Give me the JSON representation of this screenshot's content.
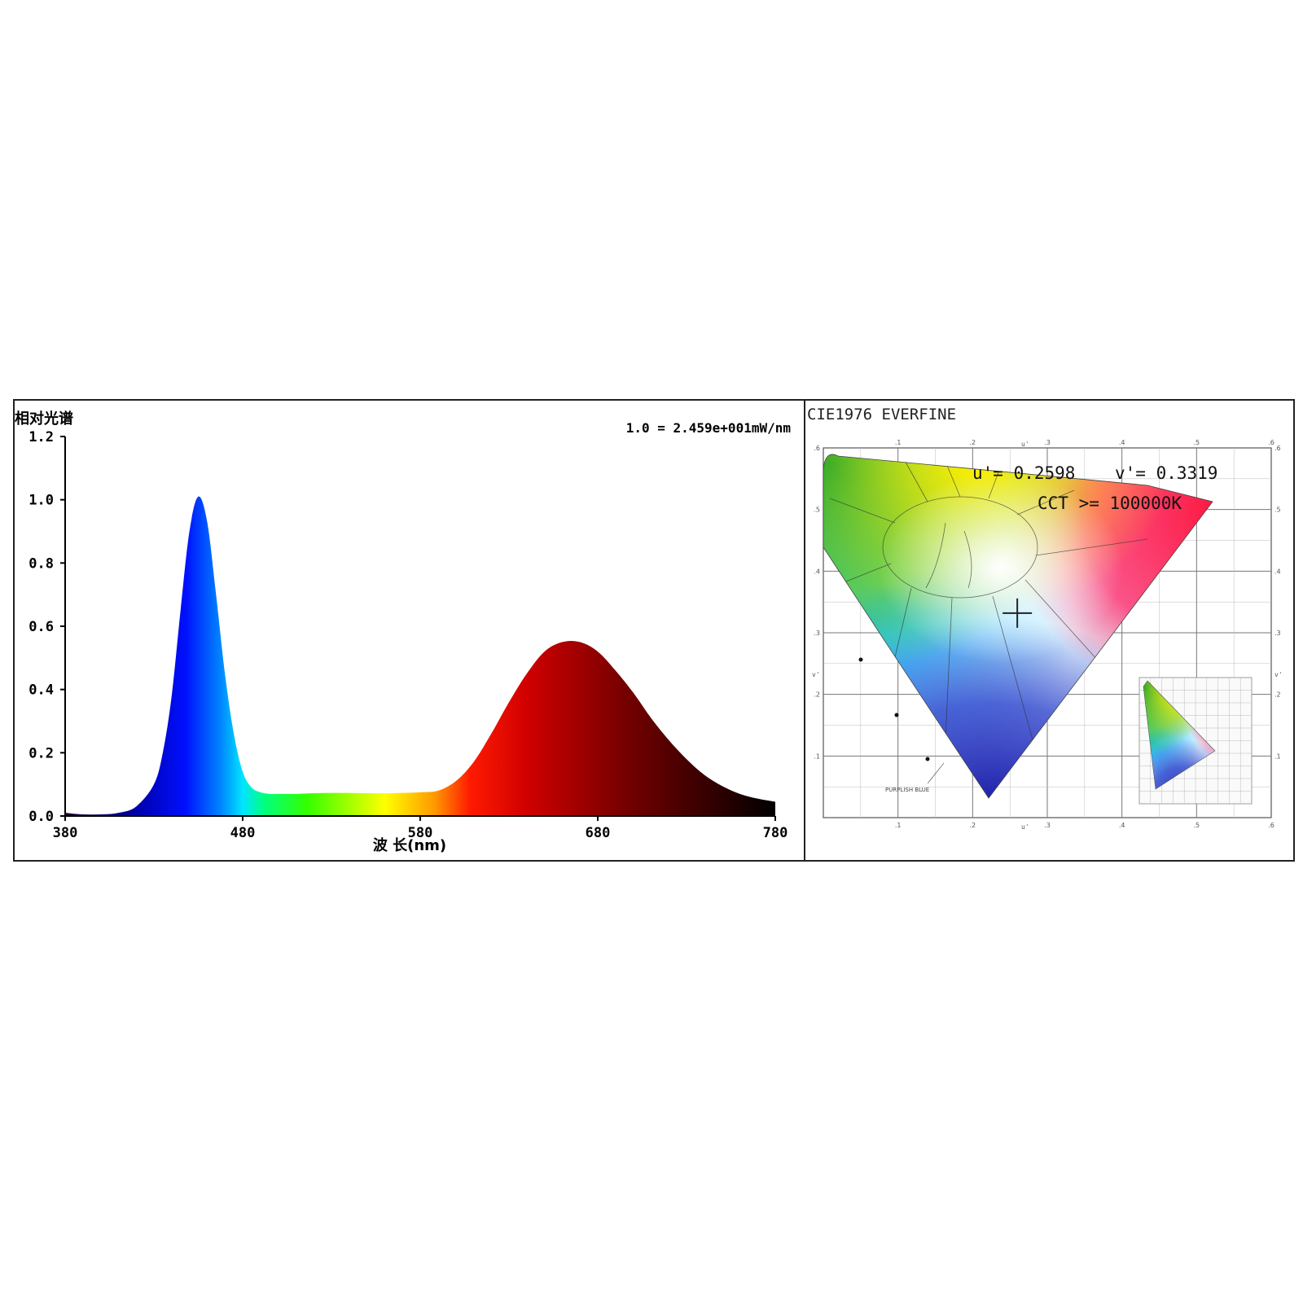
{
  "colors": {
    "frame": "#222222",
    "axis": "#000000",
    "plot_bg": "#ffffff"
  },
  "chart_data": [
    {
      "type": "area",
      "title": "1.0 = 2.459e+001mW/nm",
      "ylabel": "相对光谱",
      "xlabel": "波 长(nm)",
      "xlim": [
        380,
        780
      ],
      "ylim": [
        0,
        1.2
      ],
      "x_ticks": [
        "380",
        "480",
        "580",
        "680",
        "780"
      ],
      "y_ticks": [
        "0.0",
        "0.2",
        "0.4",
        "0.6",
        "0.8",
        "1.0",
        "1.2"
      ],
      "fill": "spectral color gradient by wavelength",
      "grid": false,
      "x": [
        380,
        390,
        400,
        410,
        420,
        430,
        435,
        440,
        445,
        450,
        455,
        460,
        465,
        470,
        475,
        480,
        485,
        490,
        495,
        500,
        510,
        520,
        530,
        540,
        550,
        560,
        570,
        580,
        590,
        600,
        610,
        620,
        630,
        640,
        650,
        660,
        670,
        680,
        690,
        700,
        710,
        720,
        730,
        740,
        750,
        760,
        770,
        780
      ],
      "values": [
        0.01,
        0.005,
        0.005,
        0.01,
        0.03,
        0.1,
        0.2,
        0.38,
        0.65,
        0.9,
        1.01,
        0.93,
        0.7,
        0.45,
        0.26,
        0.14,
        0.09,
        0.075,
        0.07,
        0.07,
        0.07,
        0.072,
        0.073,
        0.073,
        0.072,
        0.072,
        0.073,
        0.075,
        0.08,
        0.11,
        0.17,
        0.26,
        0.36,
        0.45,
        0.52,
        0.55,
        0.55,
        0.52,
        0.46,
        0.39,
        0.31,
        0.24,
        0.18,
        0.13,
        0.095,
        0.07,
        0.055,
        0.045
      ]
    },
    {
      "type": "scatter",
      "title": "CIE1976 EVERFINE",
      "measurement": {
        "u_label": "u'= 0.2598",
        "v_label": "v'= 0.3319",
        "cct_label": "CCT >= 100000K"
      },
      "point": {
        "u": 0.2598,
        "v": 0.3319
      },
      "xlim": [
        0,
        0.6
      ],
      "ylim": [
        0,
        0.6
      ],
      "x_ticks": [
        ".1",
        ".2",
        ".3",
        ".4",
        ".5",
        ".6"
      ],
      "y_ticks": [
        ".1",
        ".2",
        ".3",
        ".4",
        ".5",
        ".6"
      ],
      "x_axis_label": "u'",
      "y_axis_label": "v'",
      "region_label": "PURPLISH BLUE",
      "grid": true
    }
  ]
}
